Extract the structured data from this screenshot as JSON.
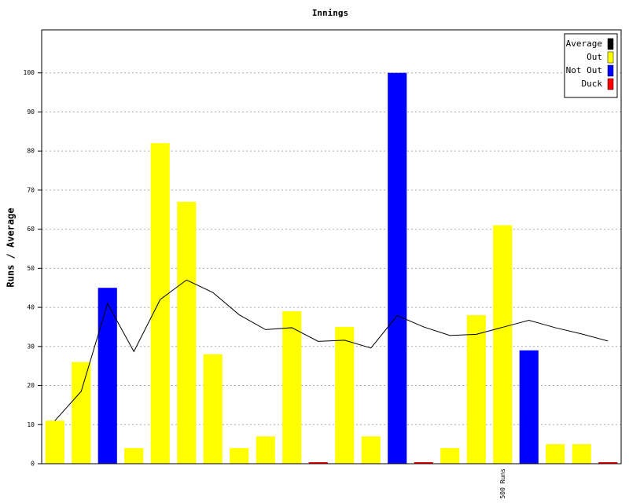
{
  "chart_data": {
    "type": "bar",
    "title": "Innings",
    "ylabel": "Runs / Average",
    "categories": [
      null,
      null,
      null,
      null,
      null,
      null,
      null,
      null,
      null,
      null,
      null,
      null,
      null,
      null,
      null,
      null,
      null,
      "500 Runs",
      null,
      null,
      null,
      null
    ],
    "series": [
      {
        "name": "Average",
        "color": "#000000",
        "kind": "line",
        "values": [
          11,
          18.5,
          41,
          28.7,
          42,
          47,
          43.8,
          38.1,
          34.3,
          34.8,
          31.3,
          31.6,
          29.6,
          37.9,
          35,
          32.8,
          33.1,
          34.9,
          36.7,
          34.8,
          33.2,
          31.4
        ]
      },
      {
        "name": "Out",
        "color": "#ffff00",
        "kind": "bar",
        "values": [
          11,
          26,
          null,
          4,
          82,
          67,
          28,
          4,
          7,
          39,
          null,
          35,
          7,
          null,
          null,
          4,
          38,
          61,
          null,
          5,
          5,
          null
        ]
      },
      {
        "name": "Not Out",
        "color": "#0000ff",
        "kind": "bar",
        "values": [
          null,
          null,
          45,
          null,
          null,
          null,
          null,
          null,
          null,
          null,
          null,
          null,
          null,
          100,
          null,
          null,
          null,
          null,
          29,
          null,
          null,
          null
        ]
      },
      {
        "name": "Duck",
        "color": "#ff0000",
        "kind": "bar",
        "values": [
          null,
          null,
          null,
          null,
          null,
          null,
          null,
          null,
          null,
          null,
          0,
          null,
          null,
          null,
          0,
          null,
          null,
          null,
          null,
          null,
          null,
          0
        ]
      }
    ],
    "ylim": [
      0,
      111
    ],
    "yticks": [
      0,
      10,
      20,
      30,
      40,
      50,
      60,
      70,
      80,
      90,
      100
    ],
    "grid": true,
    "legend": "upper right"
  }
}
